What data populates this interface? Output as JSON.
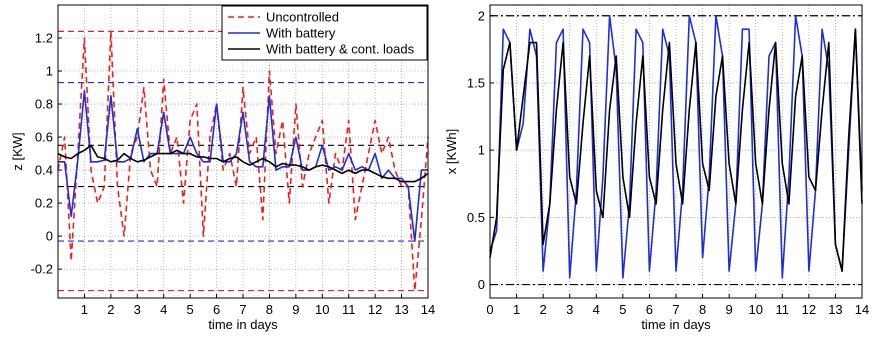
{
  "chart_data": [
    {
      "type": "line",
      "xlabel": "time in days",
      "ylabel": "z [KW]",
      "x": [
        0,
        0.25,
        0.5,
        0.75,
        1,
        1.25,
        1.5,
        1.75,
        2,
        2.25,
        2.5,
        2.75,
        3,
        3.25,
        3.5,
        3.75,
        4,
        4.25,
        4.5,
        4.75,
        5,
        5.25,
        5.5,
        5.75,
        6,
        6.25,
        6.5,
        6.75,
        7,
        7.25,
        7.5,
        7.75,
        8,
        8.25,
        8.5,
        8.75,
        9,
        9.25,
        9.5,
        9.75,
        10,
        10.25,
        10.5,
        10.75,
        11,
        11.25,
        11.5,
        11.75,
        12,
        12.25,
        12.5,
        12.75,
        13,
        13.25,
        13.5,
        13.75,
        14
      ],
      "xlim": [
        0,
        14
      ],
      "xticks": [
        1,
        2,
        3,
        4,
        5,
        6,
        7,
        8,
        9,
        10,
        11,
        12,
        13,
        14
      ],
      "ylim": [
        -0.375,
        1.4
      ],
      "yticks": [
        -0.2,
        0,
        0.2,
        0.4,
        0.6,
        0.8,
        1,
        1.2
      ],
      "grid": true,
      "legend": "upper-right",
      "series": [
        {
          "name": "Uncontrolled",
          "color": "#e8221e",
          "dash": "dashed",
          "values": [
            0.4,
            0.6,
            -0.15,
            0.5,
            1.2,
            0.4,
            0.2,
            0.3,
            1.24,
            0.3,
            0.0,
            0.5,
            0.6,
            0.9,
            0.4,
            0.3,
            0.95,
            0.5,
            0.6,
            0.2,
            0.7,
            0.8,
            0.0,
            0.6,
            0.8,
            0.4,
            0.5,
            0.3,
            0.9,
            0.5,
            0.6,
            0.1,
            1.0,
            0.5,
            0.7,
            0.2,
            0.8,
            0.3,
            0.5,
            0.6,
            0.7,
            0.2,
            0.5,
            0.4,
            0.7,
            0.1,
            0.3,
            0.5,
            0.7,
            0.5,
            0.6,
            0.4,
            0.3,
            0.3,
            -0.33,
            0.1,
            0.6
          ]
        },
        {
          "name": "With battery",
          "color": "#1f2fd6",
          "dash": "solid",
          "values": [
            0.45,
            0.45,
            0.12,
            0.46,
            0.88,
            0.45,
            0.45,
            0.46,
            0.85,
            0.45,
            0.45,
            0.47,
            0.65,
            0.45,
            0.5,
            0.5,
            0.75,
            0.5,
            0.5,
            0.5,
            0.6,
            0.5,
            0.45,
            0.45,
            0.8,
            0.45,
            0.45,
            0.5,
            0.75,
            0.45,
            0.42,
            0.42,
            0.85,
            0.4,
            0.42,
            0.42,
            0.6,
            0.4,
            0.4,
            0.42,
            0.55,
            0.4,
            0.42,
            0.4,
            0.5,
            0.4,
            0.42,
            0.4,
            0.5,
            0.35,
            0.4,
            0.35,
            0.35,
            0.3,
            -0.03,
            0.4,
            0.4
          ]
        },
        {
          "name": "With battery & cont. loads",
          "color": "#000000",
          "dash": "solid",
          "values": [
            0.5,
            0.48,
            0.47,
            0.5,
            0.52,
            0.55,
            0.48,
            0.47,
            0.45,
            0.46,
            0.5,
            0.47,
            0.45,
            0.46,
            0.48,
            0.5,
            0.5,
            0.5,
            0.52,
            0.5,
            0.5,
            0.48,
            0.48,
            0.47,
            0.47,
            0.45,
            0.47,
            0.48,
            0.45,
            0.43,
            0.45,
            0.47,
            0.45,
            0.42,
            0.44,
            0.43,
            0.43,
            0.42,
            0.4,
            0.42,
            0.43,
            0.42,
            0.4,
            0.38,
            0.4,
            0.38,
            0.4,
            0.4,
            0.38,
            0.36,
            0.35,
            0.35,
            0.33,
            0.33,
            0.33,
            0.35,
            0.38
          ]
        }
      ],
      "reference_lines": [
        {
          "value": 1.24,
          "color": "#e8221e",
          "dash": "dashed"
        },
        {
          "value": -0.33,
          "color": "#e8221e",
          "dash": "dashed"
        },
        {
          "value": 0.93,
          "color": "#1f2fd6",
          "dash": "dashed"
        },
        {
          "value": -0.03,
          "color": "#1f2fd6",
          "dash": "dashed"
        },
        {
          "value": 0.55,
          "color": "#000000",
          "dash": "dashed"
        },
        {
          "value": 0.3,
          "color": "#000000",
          "dash": "dashed"
        }
      ]
    },
    {
      "type": "line",
      "xlabel": "time in days",
      "ylabel": "x [KWh]",
      "x": [
        0,
        0.25,
        0.5,
        0.75,
        1,
        1.25,
        1.5,
        1.75,
        2,
        2.25,
        2.5,
        2.75,
        3,
        3.25,
        3.5,
        3.75,
        4,
        4.25,
        4.5,
        4.75,
        5,
        5.25,
        5.5,
        5.75,
        6,
        6.25,
        6.5,
        6.75,
        7,
        7.25,
        7.5,
        7.75,
        8,
        8.25,
        8.5,
        8.75,
        9,
        9.25,
        9.5,
        9.75,
        10,
        10.25,
        10.5,
        10.75,
        11,
        11.25,
        11.5,
        11.75,
        12,
        12.25,
        12.5,
        12.75,
        13,
        13.25,
        13.5,
        13.75,
        14
      ],
      "xlim": [
        0,
        14
      ],
      "xticks": [
        0,
        1,
        2,
        3,
        4,
        5,
        6,
        7,
        8,
        9,
        10,
        11,
        12,
        13,
        14
      ],
      "ylim": [
        -0.1,
        2.08
      ],
      "yticks": [
        0,
        0.5,
        1,
        1.5,
        2
      ],
      "grid": true,
      "series": [
        {
          "color": "#1f2fd6",
          "dash": "solid",
          "values": [
            0.25,
            0.4,
            1.9,
            1.8,
            1.0,
            1.2,
            1.9,
            1.7,
            0.1,
            0.6,
            1.8,
            1.9,
            0.05,
            0.7,
            1.9,
            1.8,
            0.1,
            0.8,
            2.0,
            1.6,
            0.05,
            0.6,
            1.9,
            1.8,
            0.1,
            0.7,
            1.9,
            1.7,
            0.1,
            0.7,
            2.0,
            1.8,
            0.2,
            0.8,
            2.0,
            1.7,
            0.1,
            0.6,
            1.9,
            1.9,
            0.1,
            0.6,
            1.7,
            1.8,
            0.05,
            0.8,
            2.0,
            1.7,
            0.1,
            0.7,
            1.9,
            1.6,
            0.3,
            0.1,
            1.0,
            1.9,
            0.7
          ]
        },
        {
          "color": "#000000",
          "dash": "solid",
          "values": [
            0.2,
            0.5,
            1.6,
            1.8,
            1.0,
            1.4,
            1.8,
            1.8,
            0.3,
            0.6,
            1.3,
            1.8,
            0.8,
            0.6,
            1.2,
            1.7,
            0.7,
            0.5,
            1.3,
            1.7,
            0.8,
            0.5,
            1.2,
            1.7,
            0.8,
            0.6,
            1.3,
            1.8,
            0.9,
            0.6,
            1.3,
            1.8,
            0.9,
            0.7,
            1.4,
            1.7,
            0.9,
            0.6,
            1.3,
            1.8,
            0.9,
            0.6,
            1.3,
            1.8,
            0.9,
            0.6,
            1.4,
            1.7,
            0.8,
            0.7,
            1.3,
            1.8,
            0.3,
            0.1,
            1.1,
            1.9,
            0.6
          ]
        }
      ],
      "reference_lines": [
        {
          "value": 2,
          "color": "#000000",
          "dash": "dashdot"
        },
        {
          "value": 0,
          "color": "#000000",
          "dash": "dashdot"
        }
      ]
    }
  ]
}
